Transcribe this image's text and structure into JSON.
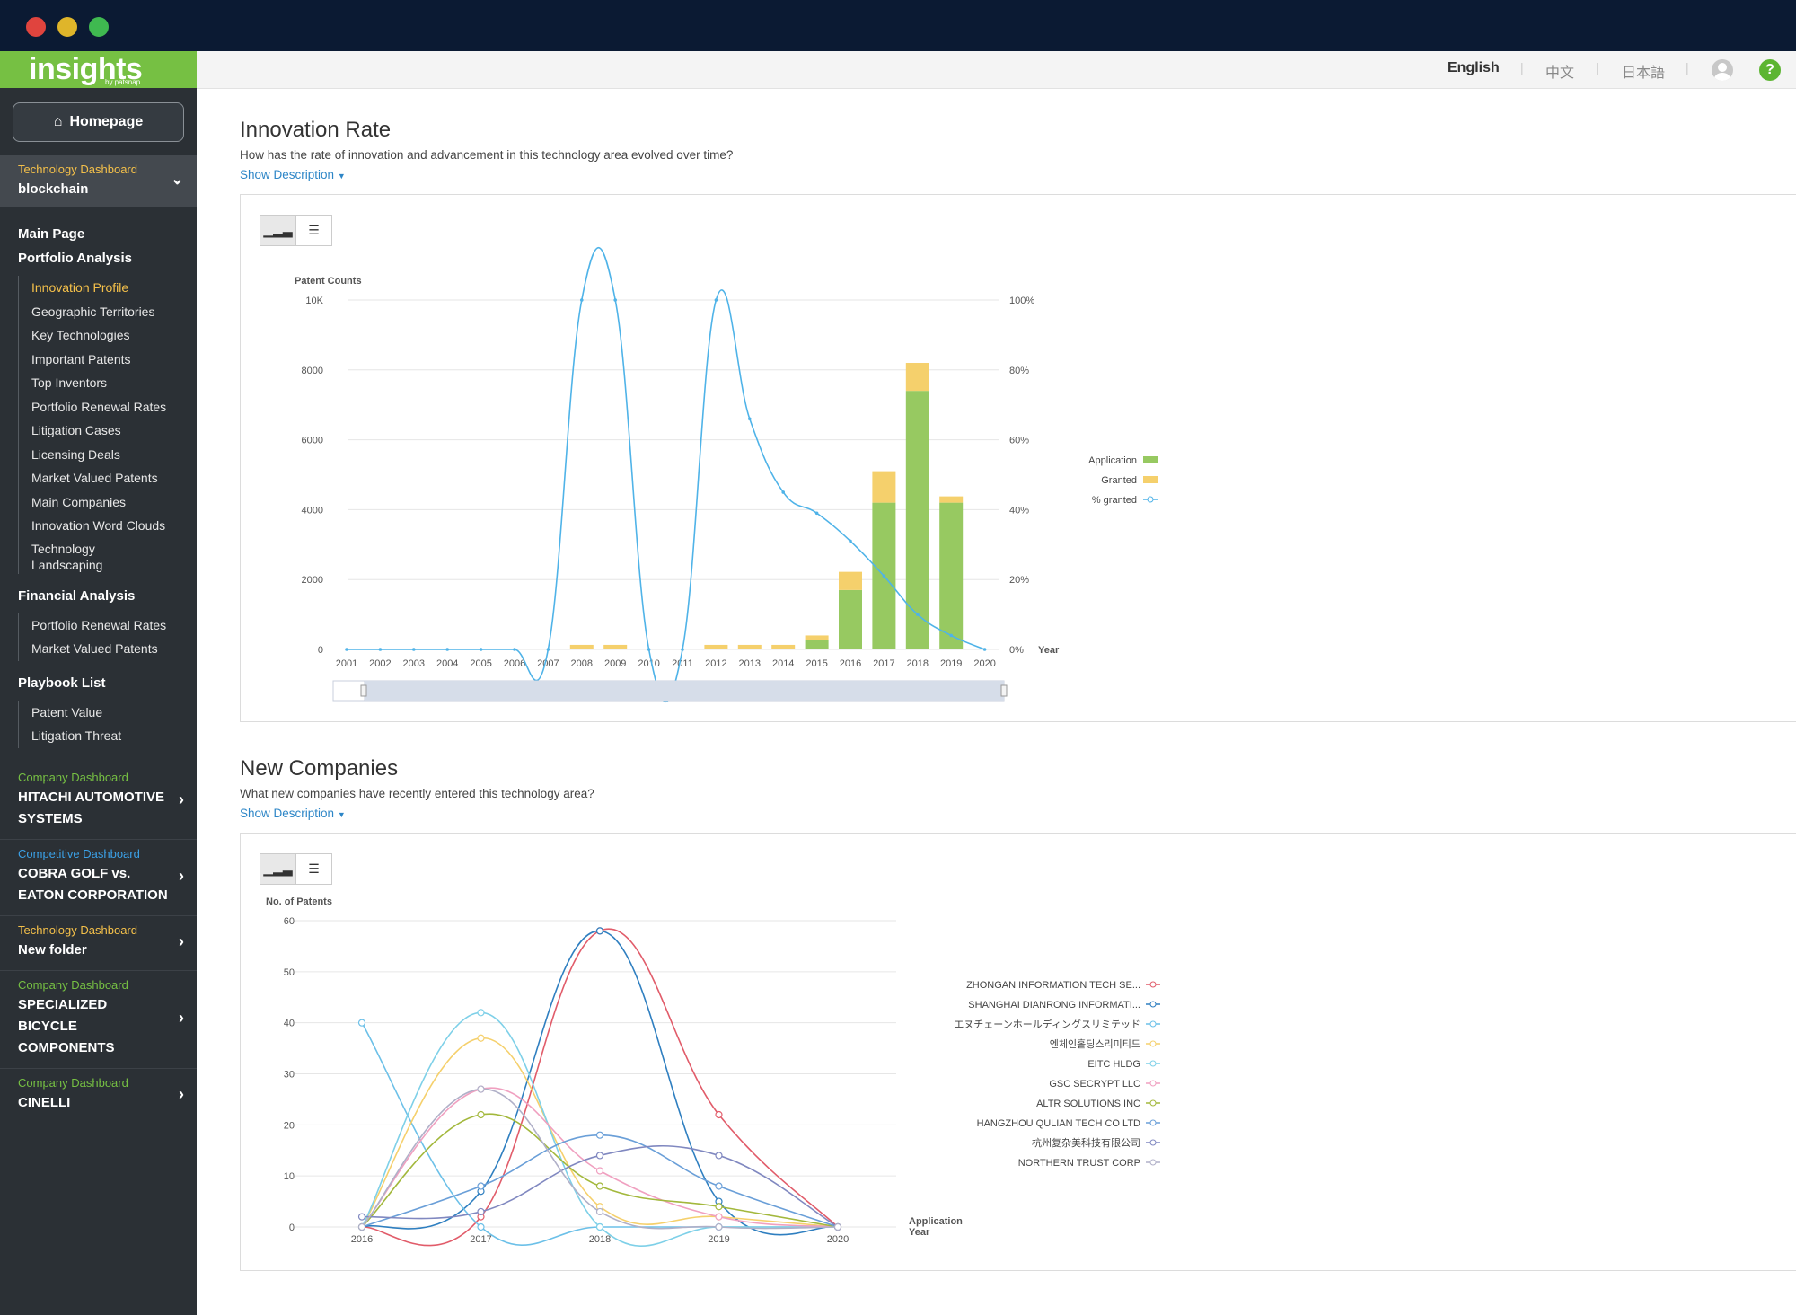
{
  "window": {
    "controls": [
      "close",
      "minimize",
      "maximize"
    ]
  },
  "sidebar": {
    "logo": {
      "text": "insights",
      "sub": "by patsnap"
    },
    "homepage": "Homepage",
    "tech_dashboard": {
      "label": "Technology Dashboard",
      "name": "blockchain"
    },
    "main_page": "Main Page",
    "portfolio_analysis": "Portfolio Analysis",
    "portfolio_items": [
      "Innovation Profile",
      "Geographic Territories",
      "Key Technologies",
      "Important Patents",
      "Top Inventors",
      "Portfolio Renewal Rates",
      "Litigation Cases",
      "Licensing Deals",
      "Market Valued Patents",
      "Main Companies",
      "Innovation Word Clouds",
      "Technology Landscaping"
    ],
    "financial_analysis": "Financial Analysis",
    "financial_items": [
      "Portfolio Renewal Rates",
      "Market Valued Patents"
    ],
    "playbook_list": "Playbook List",
    "playbook_items": [
      "Patent Value",
      "Litigation Threat"
    ],
    "dashboards": [
      {
        "type": "Company Dashboard",
        "name": "HITACHI AUTOMOTIVE SYSTEMS",
        "color": "#76c043"
      },
      {
        "type": "Competitive Dashboard",
        "name": "COBRA GOLF vs. EATON CORPORATION",
        "color": "#3ba0e6"
      },
      {
        "type": "Technology Dashboard",
        "name": "New folder",
        "color": "#f4c04a"
      },
      {
        "type": "Company Dashboard",
        "name": "SPECIALIZED BICYCLE COMPONENTS",
        "color": "#76c043"
      },
      {
        "type": "Company Dashboard",
        "name": "CINELLI",
        "color": "#76c043"
      }
    ]
  },
  "topbar": {
    "languages": [
      "English",
      "中文",
      "日本語"
    ],
    "help": "?"
  },
  "innovation": {
    "title": "Innovation Rate",
    "subtitle": "How has the rate of innovation and advancement in this technology area evolved over time?",
    "show_description": "Show Description"
  },
  "companies": {
    "title": "New Companies",
    "subtitle": "What new companies have recently entered this technology area?",
    "show_description": "Show Description"
  },
  "chart_data": [
    {
      "type": "bar",
      "stacked": true,
      "ylabel": "Patent Counts",
      "y2label": "",
      "xlabel": "Year",
      "ylim": [
        0,
        10000
      ],
      "y2lim": [
        0,
        100
      ],
      "yticks": [
        "0",
        "2000",
        "4000",
        "6000",
        "8000",
        "10K"
      ],
      "y2ticks": [
        "0%",
        "20%",
        "40%",
        "60%",
        "80%",
        "100%"
      ],
      "categories": [
        "2001",
        "2002",
        "2003",
        "2004",
        "2005",
        "2006",
        "2007",
        "2008",
        "2009",
        "2010",
        "2011",
        "2012",
        "2013",
        "2014",
        "2015",
        "2016",
        "2017",
        "2018",
        "2019",
        "2020"
      ],
      "series": [
        {
          "name": "Application",
          "type": "bar",
          "color": "#97c961",
          "values": [
            0,
            0,
            0,
            0,
            0,
            0,
            0,
            0,
            0,
            0,
            0,
            0,
            0,
            0,
            280,
            1700,
            4200,
            7400,
            4200,
            0
          ]
        },
        {
          "name": "Granted",
          "type": "bar",
          "color": "#f5d06c",
          "values": [
            0,
            0,
            0,
            0,
            0,
            0,
            0,
            130,
            130,
            0,
            0,
            130,
            130,
            130,
            120,
            520,
            900,
            800,
            180,
            0
          ]
        },
        {
          "name": "% granted",
          "type": "line",
          "axis": "right",
          "color": "#4fb3e8",
          "values": [
            0,
            0,
            0,
            0,
            0,
            0,
            0,
            100,
            100,
            0,
            0,
            100,
            66,
            45,
            39,
            31,
            21,
            10,
            4,
            0
          ]
        }
      ],
      "legend_position": "right",
      "grid": true
    },
    {
      "type": "line",
      "ylabel": "No. of Patents",
      "xlabel": "Application Year",
      "ylim": [
        0,
        60
      ],
      "yticks": [
        "0",
        "10",
        "20",
        "30",
        "40",
        "50",
        "60"
      ],
      "categories": [
        "2016",
        "2017",
        "2018",
        "2019",
        "2020"
      ],
      "series": [
        {
          "name": "ZHONGAN INFORMATION TECH SE...",
          "color": "#e15c6a",
          "values": [
            0,
            2,
            58,
            22,
            0
          ]
        },
        {
          "name": "SHANGHAI DIANRONG INFORMATI...",
          "color": "#2f7fc0",
          "values": [
            0,
            7,
            58,
            5,
            0
          ]
        },
        {
          "name": "エヌチェーンホールディングスリミテッド",
          "color": "#6cc0e8",
          "values": [
            40,
            0,
            0,
            0,
            0
          ]
        },
        {
          "name": "엔체인홀딩스리미티드",
          "color": "#f5d06c",
          "values": [
            0,
            37,
            4,
            2,
            0
          ]
        },
        {
          "name": "EITC HLDG",
          "color": "#7ed0e8",
          "values": [
            0,
            42,
            0,
            0,
            0
          ]
        },
        {
          "name": "GSC SECRYPT LLC",
          "color": "#f0a0c0",
          "values": [
            0,
            27,
            11,
            2,
            0
          ]
        },
        {
          "name": "ALTR SOLUTIONS INC",
          "color": "#a3b83c",
          "values": [
            0,
            22,
            8,
            4,
            0
          ]
        },
        {
          "name": "HANGZHOU QULIAN TECH CO LTD",
          "color": "#6a9fd8",
          "values": [
            0,
            8,
            18,
            8,
            0
          ]
        },
        {
          "name": "杭州复杂美科技有限公司",
          "color": "#8088c0",
          "values": [
            2,
            3,
            14,
            14,
            0
          ]
        },
        {
          "name": "NORTHERN TRUST CORP",
          "color": "#b0b0c8",
          "values": [
            0,
            27,
            3,
            0,
            0
          ]
        }
      ],
      "legend_position": "right",
      "grid": true
    }
  ]
}
